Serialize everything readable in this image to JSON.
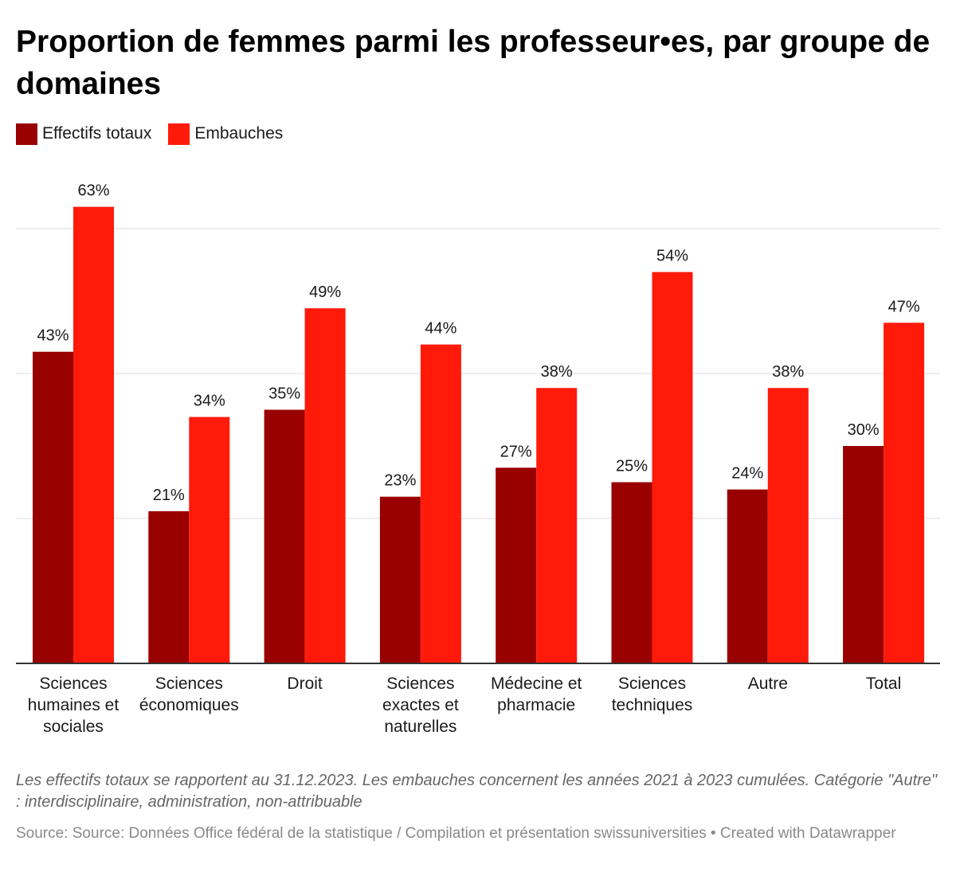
{
  "title": "Proportion de femmes parmi les professeur•es, par groupe de domaines",
  "legend": [
    {
      "label": "Effectifs totaux",
      "color": "#990000"
    },
    {
      "label": "Embauches",
      "color": "#ff1a0a"
    }
  ],
  "chart_data": {
    "type": "bar",
    "title": "Proportion de femmes parmi les professeur•es, par groupe de domaines",
    "categories": [
      [
        "Sciences",
        "humaines et",
        "sociales"
      ],
      [
        "Sciences",
        "économiques"
      ],
      [
        "Droit"
      ],
      [
        "Sciences",
        "exactes et",
        "naturelles"
      ],
      [
        "Médecine et",
        "pharmacie"
      ],
      [
        "Sciences",
        "techniques"
      ],
      [
        "Autre"
      ],
      [
        "Total"
      ]
    ],
    "series": [
      {
        "name": "Effectifs totaux",
        "color": "#990000",
        "values": [
          43,
          21,
          35,
          23,
          27,
          25,
          24,
          30
        ]
      },
      {
        "name": "Embauches",
        "color": "#ff1a0a",
        "values": [
          63,
          34,
          49,
          44,
          38,
          54,
          38,
          47
        ]
      }
    ],
    "value_suffix": "%",
    "ylim": [
      0,
      70
    ],
    "gridlines": [
      20,
      40,
      60
    ],
    "grid": true,
    "legend_position": "top-left"
  },
  "notes": "Les effectifs totaux se rapportent au 31.12.2023. Les embauches concernent les années 2021 à 2023 cumulées. Catégorie \"Autre\" : interdisciplinaire, administration, non-attribuable",
  "source": "Source: Source: Données Office fédéral de la statistique / Compilation et présentation swissuniversities • Created with Datawrapper"
}
